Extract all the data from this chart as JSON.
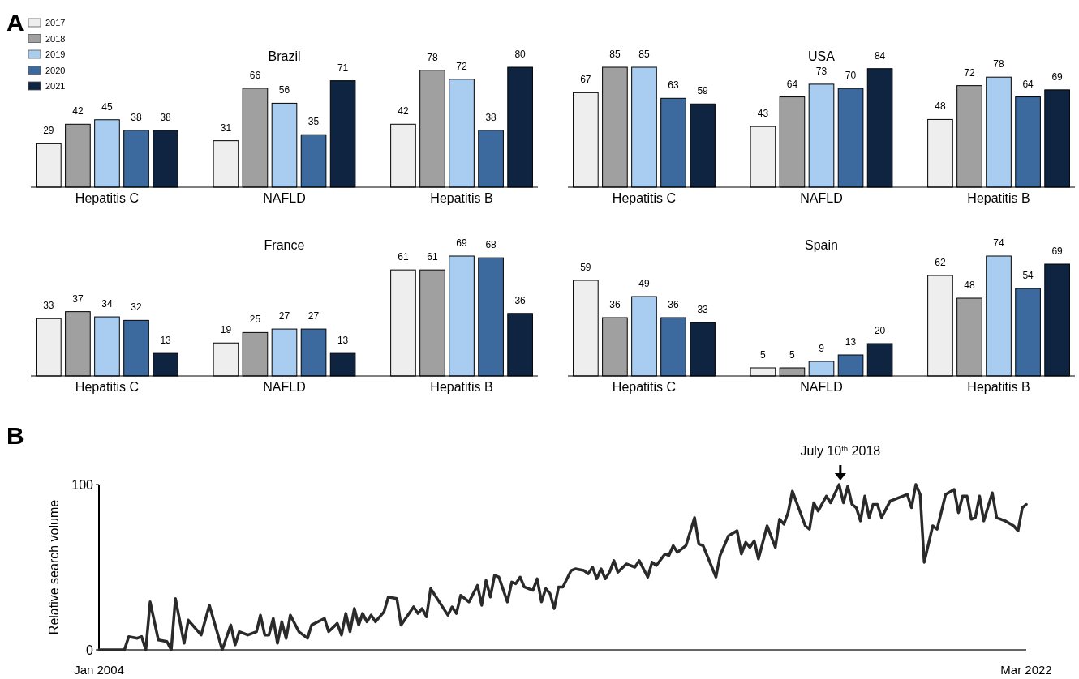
{
  "chart_data": [
    {
      "type": "bar",
      "title": "Brazil",
      "annotations": [
        "A"
      ],
      "categories": [
        "Hepatitis C",
        "NAFLD",
        "Hepatitis B"
      ],
      "data_labels": true,
      "legend": "top left",
      "series": [
        {
          "name": "2017",
          "color": "#eeeeee",
          "values": [
            29,
            31,
            42
          ]
        },
        {
          "name": "2018",
          "color": "#a0a0a0",
          "values": [
            42,
            66,
            78
          ]
        },
        {
          "name": "2019",
          "color": "#a8cdf0",
          "values": [
            45,
            56,
            72
          ]
        },
        {
          "name": "2020",
          "color": "#3d6a9e",
          "values": [
            38,
            35,
            38
          ]
        },
        {
          "name": "2021",
          "color": "#0f2440",
          "values": [
            38,
            71,
            80
          ]
        }
      ]
    },
    {
      "type": "bar",
      "title": "USA",
      "categories": [
        "Hepatitis C",
        "NAFLD",
        "Hepatitis B"
      ],
      "data_labels": true,
      "series": [
        {
          "color": "#eeeeee",
          "values": [
            67,
            43,
            48
          ]
        },
        {
          "color": "#a0a0a0",
          "values": [
            85,
            64,
            72
          ]
        },
        {
          "color": "#a8cdf0",
          "values": [
            85,
            73,
            78
          ]
        },
        {
          "color": "#3d6a9e",
          "values": [
            63,
            70,
            64
          ]
        },
        {
          "color": "#0f2440",
          "values": [
            59,
            84,
            69
          ]
        }
      ]
    },
    {
      "type": "bar",
      "title": "France",
      "categories": [
        "Hepatitis C",
        "NAFLD",
        "Hepatitis B"
      ],
      "data_labels": true,
      "series": [
        {
          "color": "#eeeeee",
          "values": [
            33,
            19,
            61
          ]
        },
        {
          "color": "#a0a0a0",
          "values": [
            37,
            25,
            61
          ]
        },
        {
          "color": "#a8cdf0",
          "values": [
            34,
            27,
            69
          ]
        },
        {
          "color": "#3d6a9e",
          "values": [
            32,
            27,
            68
          ]
        },
        {
          "color": "#0f2440",
          "values": [
            13,
            13,
            36
          ]
        }
      ]
    },
    {
      "type": "bar",
      "title": "Spain",
      "categories": [
        "Hepatitis C",
        "NAFLD",
        "Hepatitis B"
      ],
      "data_labels": true,
      "series": [
        {
          "color": "#eeeeee",
          "values": [
            59,
            5,
            62
          ]
        },
        {
          "color": "#a0a0a0",
          "values": [
            36,
            5,
            48
          ]
        },
        {
          "color": "#a8cdf0",
          "values": [
            49,
            9,
            74
          ]
        },
        {
          "color": "#3d6a9e",
          "values": [
            36,
            13,
            54
          ]
        },
        {
          "color": "#0f2440",
          "values": [
            33,
            20,
            69
          ]
        }
      ]
    },
    {
      "type": "line",
      "ylabel": "Relative search volume",
      "annotations": [
        "B",
        {
          "text": "July 10$^{th}$ 2018",
          "x": "2018-07-10",
          "y": 100
        }
      ],
      "xlim": [
        "2004-01",
        "2022-03"
      ],
      "xticks": [
        {
          "value": "2004-01",
          "label": "Jan 2004"
        },
        {
          "value": "2022-03",
          "label": "Mar 2022"
        }
      ],
      "ylim": [
        0,
        100
      ],
      "yticks": [
        0,
        100
      ],
      "series": [
        {
          "color": "#2a2a2a",
          "x": [
            "2004-01",
            "2004-07",
            "2004-08",
            "2004-10",
            "2004-11",
            "2004-12",
            "2005-01",
            "2005-03",
            "2005-05",
            "2005-06",
            "2005-07",
            "2005-09",
            "2005-10",
            "2006-01",
            "2006-03",
            "2006-06",
            "2006-08",
            "2006-09",
            "2006-10",
            "2006-12",
            "2007-02",
            "2007-03",
            "2007-04",
            "2007-05",
            "2007-06",
            "2007-07",
            "2007-08",
            "2007-09",
            "2007-10",
            "2007-12",
            "2008-02",
            "2008-03",
            "2008-06",
            "2008-07",
            "2008-09",
            "2008-10",
            "2008-11",
            "2008-12",
            "2009-01",
            "2009-02",
            "2009-03",
            "2009-04",
            "2009-05",
            "2009-06",
            "2009-08",
            "2009-09",
            "2009-11",
            "2009-12",
            "2010-03",
            "2010-04",
            "2010-05",
            "2010-06",
            "2010-07",
            "2010-11",
            "2010-12",
            "2011-01",
            "2011-02",
            "2011-04",
            "2011-06",
            "2011-07",
            "2011-08",
            "2011-09",
            "2011-10",
            "2011-11",
            "2012-01",
            "2012-02",
            "2012-03",
            "2012-04",
            "2012-05",
            "2012-07",
            "2012-08",
            "2012-09",
            "2012-10",
            "2012-11",
            "2012-12",
            "2013-01",
            "2013-02",
            "2013-04",
            "2013-05",
            "2013-07",
            "2013-08",
            "2013-09",
            "2013-10",
            "2013-11",
            "2013-12",
            "2014-01",
            "2014-02",
            "2014-03",
            "2014-05",
            "2014-07",
            "2014-08",
            "2014-10",
            "2014-11",
            "2014-12",
            "2015-02",
            "2015-03",
            "2015-04",
            "2015-05",
            "2015-07",
            "2015-09",
            "2015-10",
            "2015-11",
            "2016-02",
            "2016-03",
            "2016-05",
            "2016-07",
            "2016-08",
            "2016-09",
            "2016-10",
            "2016-11",
            "2016-12",
            "2017-02",
            "2017-04",
            "2017-05",
            "2017-06",
            "2017-07",
            "2017-08",
            "2017-11",
            "2017-12",
            "2018-01",
            "2018-02",
            "2018-04",
            "2018-05",
            "2018-07",
            "2018-08",
            "2018-09",
            "2018-10",
            "2018-11",
            "2018-12",
            "2019-01",
            "2019-02",
            "2019-03",
            "2019-04",
            "2019-05",
            "2019-07",
            "2019-08",
            "2019-11",
            "2019-12",
            "2020-01",
            "2020-02",
            "2020-03",
            "2020-05",
            "2020-06",
            "2020-08",
            "2020-10",
            "2020-11",
            "2020-12",
            "2021-01",
            "2021-02",
            "2021-03",
            "2021-04",
            "2021-05",
            "2021-07",
            "2021-08",
            "2021-10",
            "2021-12",
            "2022-01",
            "2022-02",
            "2022-03"
          ],
          "values": [
            0,
            0,
            8,
            7,
            8,
            0,
            29,
            6,
            5,
            0,
            31,
            4,
            18,
            9,
            27,
            0,
            15,
            3,
            11,
            9,
            11,
            21,
            9,
            9,
            19,
            4,
            17,
            7,
            21,
            11,
            7,
            15,
            19,
            11,
            16,
            9,
            22,
            11,
            25,
            15,
            22,
            17,
            21,
            17,
            23,
            32,
            31,
            15,
            26,
            22,
            25,
            20,
            37,
            21,
            26,
            22,
            33,
            29,
            39,
            27,
            42,
            32,
            45,
            44,
            29,
            41,
            40,
            44,
            38,
            36,
            43,
            29,
            37,
            34,
            25,
            38,
            38,
            48,
            49,
            48,
            46,
            50,
            43,
            49,
            43,
            47,
            54,
            47,
            52,
            50,
            54,
            44,
            53,
            51,
            58,
            57,
            63,
            59,
            63,
            80,
            64,
            63,
            44,
            57,
            69,
            72,
            58,
            65,
            62,
            66,
            55,
            75,
            62,
            79,
            76,
            83,
            96,
            75,
            73,
            89,
            84,
            93,
            89,
            100,
            89,
            99,
            88,
            86,
            78,
            93,
            80,
            88,
            88,
            80,
            90,
            91,
            94,
            86,
            100,
            94,
            53,
            75,
            73,
            94,
            97,
            83,
            93,
            93,
            79,
            80,
            93,
            78,
            95,
            80,
            78,
            75,
            72,
            86,
            88
          ]
        }
      ]
    }
  ]
}
